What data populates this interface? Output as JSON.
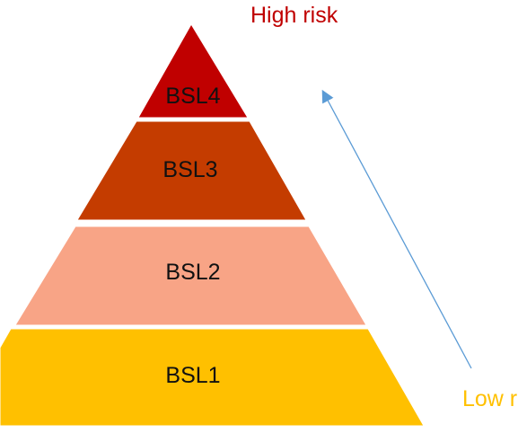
{
  "labels": {
    "high": "High risk",
    "low": "Low r"
  },
  "tiers": [
    {
      "label": "BSL4",
      "color": "#c00000"
    },
    {
      "label": "BSL3",
      "color": "#c43c00"
    },
    {
      "label": "BSL2",
      "color": "#f8a486"
    },
    {
      "label": "BSL1",
      "color": "#ffc000"
    }
  ],
  "colors": {
    "high_label": "#c00000",
    "low_label": "#ffc000",
    "arrow": "#5b9bd5"
  }
}
